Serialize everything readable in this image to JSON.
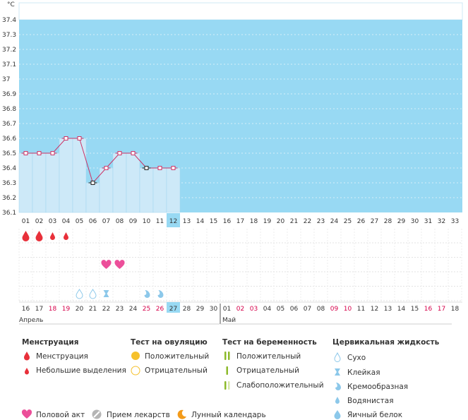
{
  "chart_data": {
    "type": "line",
    "unit_label": "°C",
    "ylim": [
      36.1,
      37.4
    ],
    "y_ticks": [
      "37.4",
      "37.3",
      "37.2",
      "37.1",
      "37",
      "36.9",
      "36.8",
      "36.7",
      "36.6",
      "36.5",
      "36.4",
      "36.3",
      "36.2",
      "36.1"
    ],
    "cycle_days": [
      "01",
      "02",
      "03",
      "04",
      "05",
      "06",
      "07",
      "08",
      "09",
      "10",
      "11",
      "12",
      "13",
      "14",
      "15",
      "16",
      "17",
      "18",
      "19",
      "20",
      "21",
      "22",
      "23",
      "24",
      "25",
      "26",
      "27",
      "28",
      "29",
      "30",
      "31",
      "32",
      "33"
    ],
    "temperatures": [
      36.5,
      36.5,
      36.5,
      36.6,
      36.6,
      36.3,
      36.4,
      36.5,
      36.5,
      36.4,
      36.4,
      36.4
    ],
    "highlighted_points": [
      5,
      9
    ],
    "current_day_index": 11,
    "fill_color": "#cde9f8",
    "background_color": "#98d9f3",
    "line_color": "#cc3366",
    "dates": [
      "16",
      "17",
      "18",
      "19",
      "20",
      "21",
      "22",
      "23",
      "24",
      "25",
      "26",
      "27",
      "28",
      "29",
      "30",
      "01",
      "02",
      "03",
      "04",
      "05",
      "06",
      "07",
      "08",
      "09",
      "10",
      "11",
      "12",
      "13",
      "14",
      "15",
      "16",
      "17",
      "18"
    ],
    "weekend_date_indices": [
      2,
      3,
      9,
      10,
      16,
      17,
      23,
      24,
      30,
      31
    ],
    "month_labels": [
      {
        "label": "Апрель",
        "day_index": 0
      },
      {
        "label": "Май",
        "day_index": 15
      }
    ],
    "symbol_rows": [
      {
        "row": "menstruation",
        "items": [
          {
            "day_index": 0,
            "icon": "drop-large"
          },
          {
            "day_index": 1,
            "icon": "drop-large"
          },
          {
            "day_index": 2,
            "icon": "drop-small"
          },
          {
            "day_index": 3,
            "icon": "drop-small"
          }
        ]
      },
      {
        "row": "intercourse",
        "items": [
          {
            "day_index": 6,
            "icon": "heart"
          },
          {
            "day_index": 7,
            "icon": "heart"
          }
        ]
      },
      {
        "row": "cervical",
        "items": [
          {
            "day_index": 4,
            "icon": "dry"
          },
          {
            "day_index": 5,
            "icon": "dry"
          },
          {
            "day_index": 6,
            "icon": "sticky"
          },
          {
            "day_index": 9,
            "icon": "creamy"
          },
          {
            "day_index": 10,
            "icon": "creamy"
          }
        ]
      }
    ]
  },
  "legend": {
    "menstruation": {
      "title": "Менструация",
      "items": [
        "Менструация",
        "Небольшие выделения"
      ]
    },
    "ovulation_test": {
      "title": "Тест на овуляцию",
      "items": [
        "Положительный",
        "Отрицательный"
      ]
    },
    "pregnancy_test": {
      "title": "Тест на беременность",
      "items": [
        "Положительный",
        "Отрицательный",
        "Слабоположительный"
      ]
    },
    "cervical": {
      "title": "Цервикальная жидкость",
      "items": [
        "Сухо",
        "Клейкая",
        "Кремообразная",
        "Водянистая",
        "Яичный белок"
      ]
    },
    "bottom": [
      "Половой акт",
      "Прием лекарств",
      "Лунный календарь"
    ]
  },
  "colors": {
    "red": "#e8303a",
    "pink": "#ec4f9a",
    "yellow": "#f6c12c",
    "green": "#8cba2a",
    "blue": "#8cc8ea",
    "orange": "#f39b1a",
    "gray": "#9a9a9a",
    "weekend": "#d6004a"
  },
  "icons": {
    "ovulation_positive": "yellow-circle-icon",
    "ovulation_negative": "circle-outline-icon",
    "pregnancy_positive": "double-bar-icon",
    "pregnancy_negative": "single-bar-icon",
    "pregnancy_faint": "faint-bar-icon",
    "intercourse": "heart-icon",
    "medication": "pill-icon",
    "moon": "moon-icon"
  }
}
